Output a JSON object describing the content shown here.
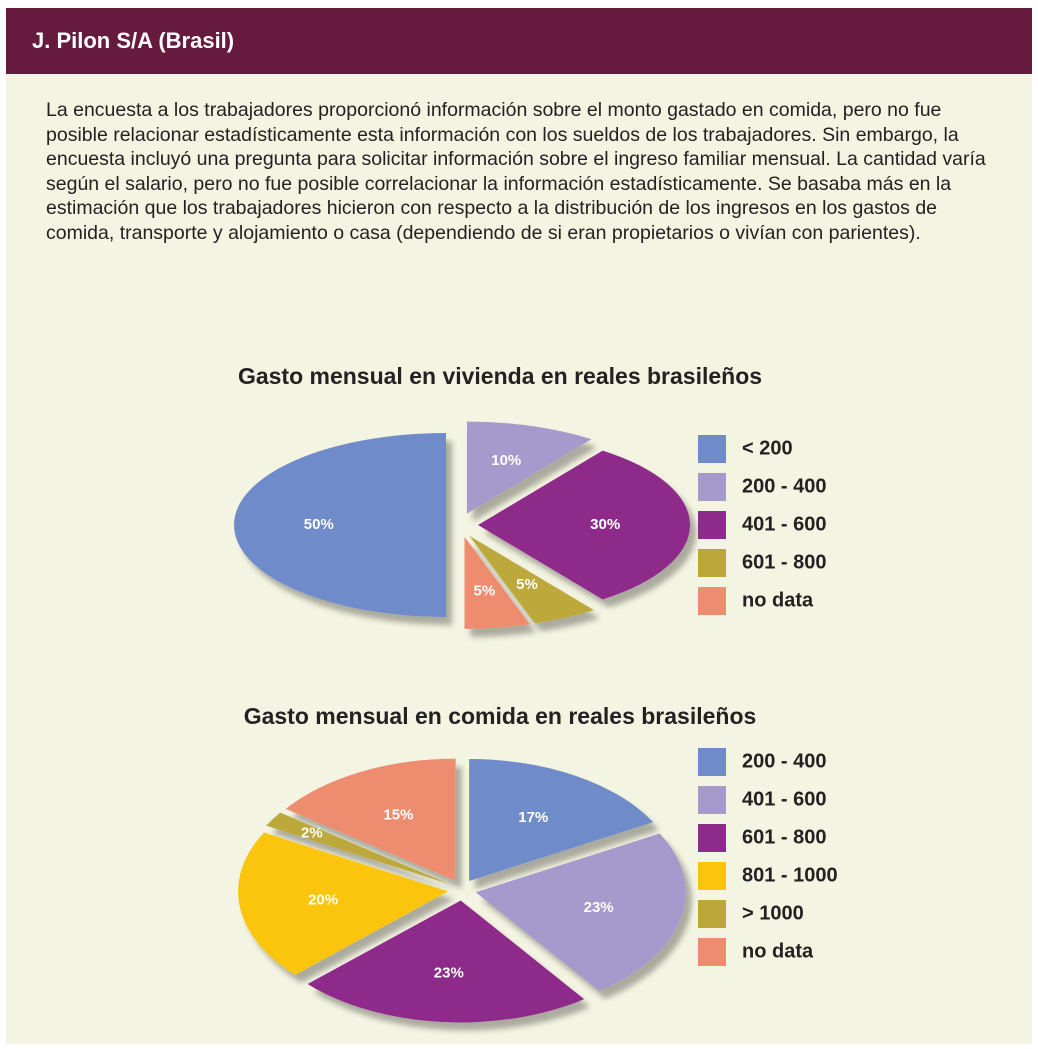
{
  "header": {
    "title": "J. Pilon S/A (Brasil)"
  },
  "body": "La encuesta a los trabajadores proporcionó información sobre el monto gastado en comida, pero no fue posible relacionar estadísticamente esta información con los sueldos de los trabajadores. Sin embargo, la encuesta incluyó una pregunta para solicitar información sobre el ingreso familiar mensual. La cantidad varía según el salario, pero no fue posible correlacionar la información estadísticamente. Se basaba más en la estimación que los trabajadores hicieron con respecto a la distribución de los ingresos en los gastos de comida, transporte y alojamiento o casa (dependiendo de si eran propietarios o vivían con parientes).",
  "chart_data": [
    {
      "type": "pie",
      "title": "Gasto mensual en vivienda en reales brasileños",
      "categories": [
        "< 200",
        "200 - 400",
        "401 - 600",
        "601 - 800",
        "no data"
      ],
      "values": [
        50,
        10,
        30,
        5,
        5
      ],
      "value_labels": [
        "50%",
        "10%",
        "30%",
        "5%",
        "5%"
      ],
      "colors": [
        "#6f8bc9",
        "#a49acb",
        "#8e2a8a",
        "#bca83a",
        "#ee8c6f"
      ]
    },
    {
      "type": "pie",
      "title": "Gasto mensual en comida en reales brasileños",
      "categories": [
        "200 - 400",
        "401 - 600",
        "601 - 800",
        "801 - 1000",
        "> 1000",
        "no data"
      ],
      "values": [
        17,
        23,
        23,
        20,
        2,
        15
      ],
      "value_labels": [
        "17%",
        "23%",
        "23%",
        "20%",
        "2%",
        "15%"
      ],
      "colors": [
        "#6f8bc9",
        "#a49acb",
        "#8e2a8a",
        "#fcc50b",
        "#bca83a",
        "#ee8c6f"
      ]
    }
  ]
}
